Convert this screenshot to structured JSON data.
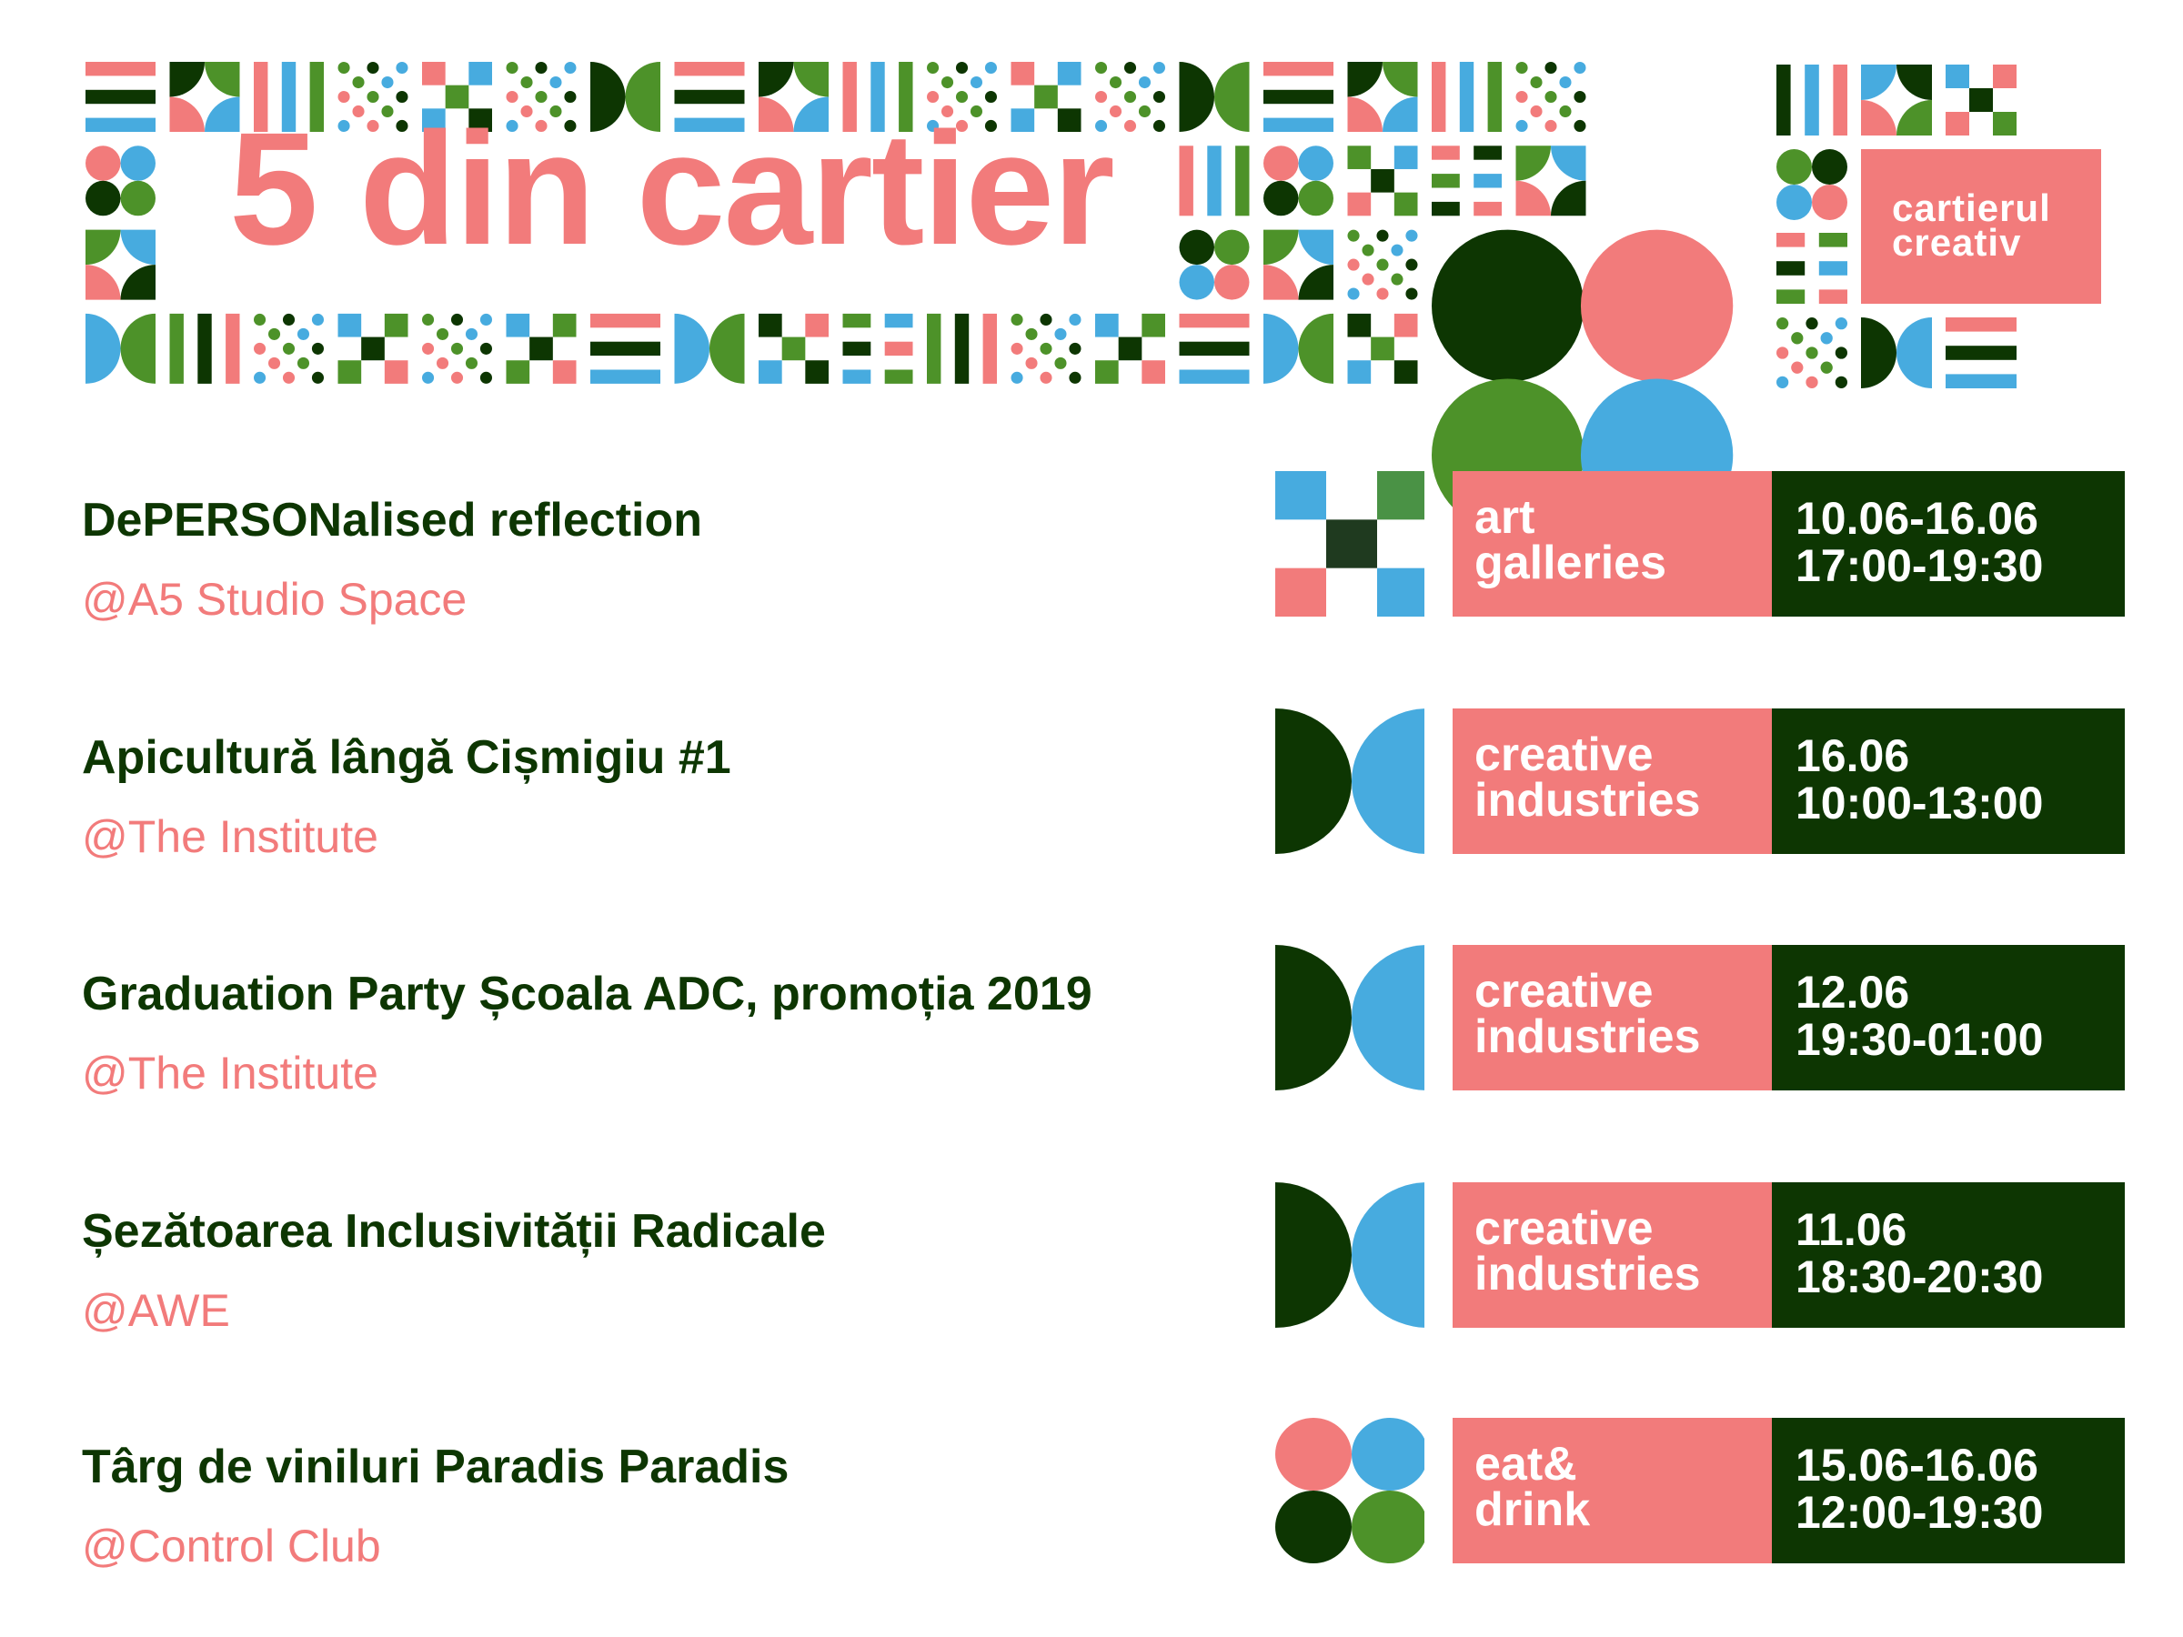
{
  "colors": {
    "pink": "#F27B7B",
    "dark_green": "#0D3602",
    "green": "#4D9229",
    "blue": "#47ABDF"
  },
  "header": {
    "title": "5 din cartier"
  },
  "logo": {
    "line1": "cartierul",
    "line2": "creativ"
  },
  "events": [
    {
      "title": "DePERSONalised reflection",
      "venue": "@A5 Studio Space",
      "category": [
        "art",
        "galleries"
      ],
      "date": "10.06-16.06",
      "time": "17:00-19:30",
      "icon": "cross-squares-icon"
    },
    {
      "title": "Apicultură lângă Cișmigiu #1",
      "venue": "@The Institute",
      "category": [
        "creative",
        "industries"
      ],
      "date": "16.06",
      "time": "10:00-13:00",
      "icon": "half-circles-icon"
    },
    {
      "title": "Graduation Party Școala ADC, promoția 2019",
      "venue": "@The Institute",
      "category": [
        "creative",
        "industries"
      ],
      "date": "12.06",
      "time": "19:30-01:00",
      "icon": "half-circles-icon"
    },
    {
      "title": "Șezătoarea Inclusivității Radicale",
      "venue": "@AWE",
      "category": [
        "creative",
        "industries"
      ],
      "date": "11.06",
      "time": "18:30-20:30",
      "icon": "half-circles-icon"
    },
    {
      "title": "Târg de viniluri Paradis Paradis",
      "venue": "@Control Club",
      "category": [
        "eat&",
        "drink"
      ],
      "date": "15.06-16.06",
      "time": "12:00-19:30",
      "icon": "four-circles-icon"
    }
  ]
}
